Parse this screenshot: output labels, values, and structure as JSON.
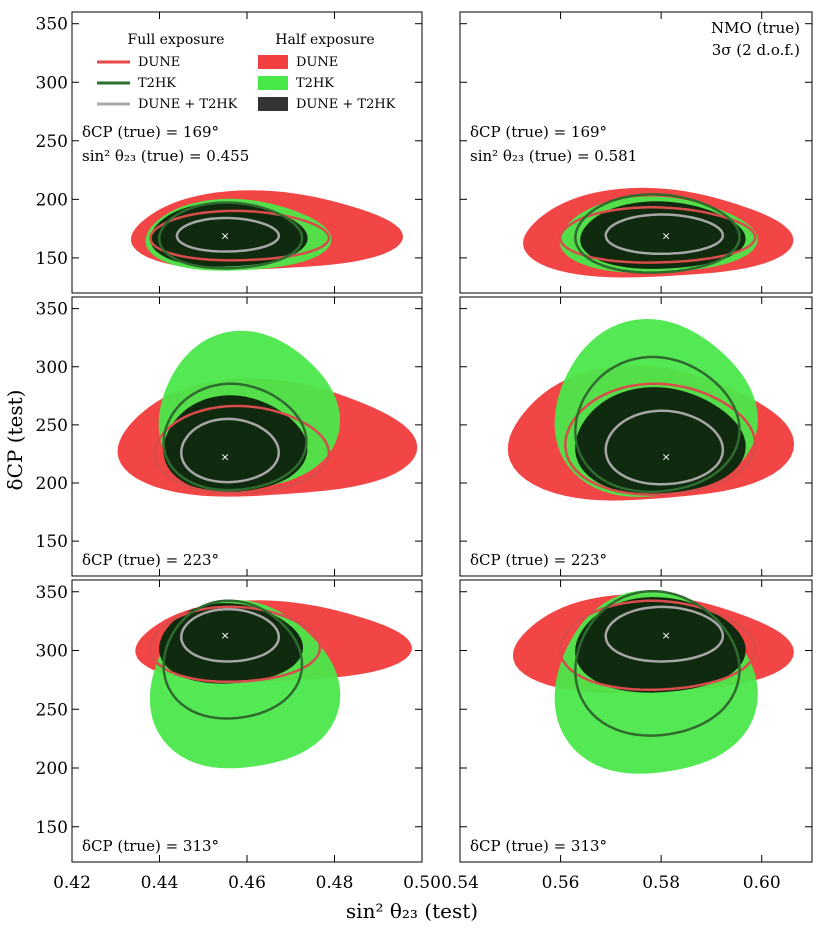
{
  "chart_data": {
    "type": "contour",
    "title": "",
    "xlabel": "sin² θ₂₃ (test)",
    "ylabel": "δCP (test)",
    "ylim": [
      120,
      360
    ],
    "yticks": [
      150,
      200,
      250,
      300,
      350
    ],
    "columns": [
      {
        "xlim": [
          0.42,
          0.5
        ],
        "xticks": [
          0.42,
          0.44,
          0.46,
          0.48,
          0.5
        ],
        "tick_labels": [
          "0.42",
          "0.44",
          "0.46",
          "0.48",
          "0.50"
        ]
      },
      {
        "xlim": [
          0.54,
          0.61
        ],
        "xticks": [
          0.54,
          0.56,
          0.58,
          0.6
        ],
        "tick_labels": [
          "0.54",
          "0.56",
          "0.58",
          "0.60"
        ]
      }
    ],
    "legend": {
      "full_title": "Full exposure",
      "half_title": "Half exposure",
      "full": [
        {
          "label": "DUNE",
          "color": "#e8474a"
        },
        {
          "label": "T2HK",
          "color": "#2c6e2c"
        },
        {
          "label": "DUNE + T2HK",
          "color": "#a8a8a8"
        }
      ],
      "half": [
        {
          "label": "DUNE",
          "color": "#f24040"
        },
        {
          "label": "T2HK",
          "color": "#48e848"
        },
        {
          "label": "DUNE + T2HK",
          "color": "#333333"
        }
      ]
    },
    "ordering_note": "NMO (true)",
    "sigma_note": "3σ (2 d.o.f.)",
    "panels": [
      {
        "row": 0,
        "col": 0,
        "true_x": 0.455,
        "true_y": 169,
        "dcp_label": "δCP (true) = 169°",
        "s23_label": "sin² θ₂₃ (true) = 0.455",
        "half_dune": {
          "x": [
            0.434,
            0.493
          ],
          "y": [
            137,
            207
          ]
        },
        "half_t2hk": {
          "x": [
            0.437,
            0.478
          ],
          "y": [
            137,
            200
          ]
        },
        "half_comb": {
          "x": [
            0.438,
            0.473
          ],
          "y": [
            141,
            197
          ]
        },
        "full_dune": {
          "x": [
            0.438,
            0.478
          ],
          "y": [
            147,
            190
          ]
        },
        "full_t2hk": {
          "x": [
            0.44,
            0.472
          ],
          "y": [
            140,
            197
          ]
        },
        "full_comb": {
          "x": [
            0.444,
            0.467
          ],
          "y": [
            155,
            184
          ]
        }
      },
      {
        "row": 0,
        "col": 1,
        "true_x": 0.581,
        "true_y": 169,
        "dcp_label": "δCP (true) = 169°",
        "s23_label": "sin² θ₂₃ (true) = 0.581",
        "half_dune": {
          "x": [
            0.553,
            0.604
          ],
          "y": [
            130,
            209
          ]
        },
        "half_t2hk": {
          "x": [
            0.56,
            0.598
          ],
          "y": [
            135,
            202
          ]
        },
        "half_comb": {
          "x": [
            0.564,
            0.596
          ],
          "y": [
            139,
            198
          ]
        },
        "full_dune": {
          "x": [
            0.56,
            0.598
          ],
          "y": [
            145,
            193
          ]
        },
        "full_t2hk": {
          "x": [
            0.563,
            0.595
          ],
          "y": [
            136,
            204
          ]
        },
        "full_comb": {
          "x": [
            0.569,
            0.592
          ],
          "y": [
            153,
            187
          ]
        }
      },
      {
        "row": 1,
        "col": 0,
        "true_x": 0.455,
        "true_y": 223,
        "dcp_label": "δCP (true) = 223°",
        "half_dune": {
          "x": [
            0.431,
            0.496
          ],
          "y": [
            184,
            289
          ]
        },
        "half_t2hk": {
          "x": [
            0.44,
            0.48
          ],
          "y": [
            190,
            330
          ]
        },
        "half_comb": {
          "x": [
            0.441,
            0.473
          ],
          "y": [
            190,
            275
          ]
        },
        "full_dune": {
          "x": [
            0.439,
            0.478
          ],
          "y": [
            190,
            266
          ]
        },
        "full_t2hk": {
          "x": [
            0.441,
            0.473
          ],
          "y": [
            192,
            285
          ]
        },
        "full_comb": {
          "x": [
            0.445,
            0.467
          ],
          "y": [
            200,
            255
          ]
        }
      },
      {
        "row": 1,
        "col": 1,
        "true_x": 0.581,
        "true_y": 223,
        "dcp_label": "δCP (true) = 223°",
        "half_dune": {
          "x": [
            0.55,
            0.604
          ],
          "y": [
            180,
            300
          ]
        },
        "half_t2hk": {
          "x": [
            0.559,
            0.598
          ],
          "y": [
            183,
            340
          ]
        },
        "half_comb": {
          "x": [
            0.563,
            0.596
          ],
          "y": [
            188,
            282
          ]
        },
        "full_dune": {
          "x": [
            0.561,
            0.598
          ],
          "y": [
            188,
            285
          ]
        },
        "full_t2hk": {
          "x": [
            0.563,
            0.595
          ],
          "y": [
            190,
            308
          ]
        },
        "full_comb": {
          "x": [
            0.569,
            0.592
          ],
          "y": [
            198,
            262
          ]
        }
      },
      {
        "row": 2,
        "col": 0,
        "true_x": 0.455,
        "true_y": 313,
        "dcp_label": "δCP (true) = 313°",
        "half_dune": {
          "x": [
            0.435,
            0.495
          ],
          "y": [
            270,
            342
          ]
        },
        "half_t2hk": {
          "x": [
            0.438,
            0.48
          ],
          "y": [
            195,
            342
          ]
        },
        "half_comb": {
          "x": [
            0.44,
            0.472
          ],
          "y": [
            270,
            340
          ]
        },
        "full_dune": {
          "x": [
            0.438,
            0.476
          ],
          "y": [
            272,
            337
          ]
        },
        "full_t2hk": {
          "x": [
            0.441,
            0.472
          ],
          "y": [
            240,
            342
          ]
        },
        "full_comb": {
          "x": [
            0.445,
            0.467
          ],
          "y": [
            290,
            335
          ]
        }
      },
      {
        "row": 2,
        "col": 1,
        "true_x": 0.581,
        "true_y": 313,
        "dcp_label": "δCP (true) = 313°",
        "half_dune": {
          "x": [
            0.551,
            0.604
          ],
          "y": [
            260,
            347
          ]
        },
        "half_t2hk": {
          "x": [
            0.559,
            0.598
          ],
          "y": [
            190,
            350
          ]
        },
        "half_comb": {
          "x": [
            0.563,
            0.596
          ],
          "y": [
            262,
            345
          ]
        },
        "full_dune": {
          "x": [
            0.56,
            0.598
          ],
          "y": [
            265,
            342
          ]
        },
        "full_t2hk": {
          "x": [
            0.563,
            0.595
          ],
          "y": [
            225,
            350
          ]
        },
        "full_comb": {
          "x": [
            0.569,
            0.592
          ],
          "y": [
            290,
            337
          ]
        }
      }
    ]
  }
}
